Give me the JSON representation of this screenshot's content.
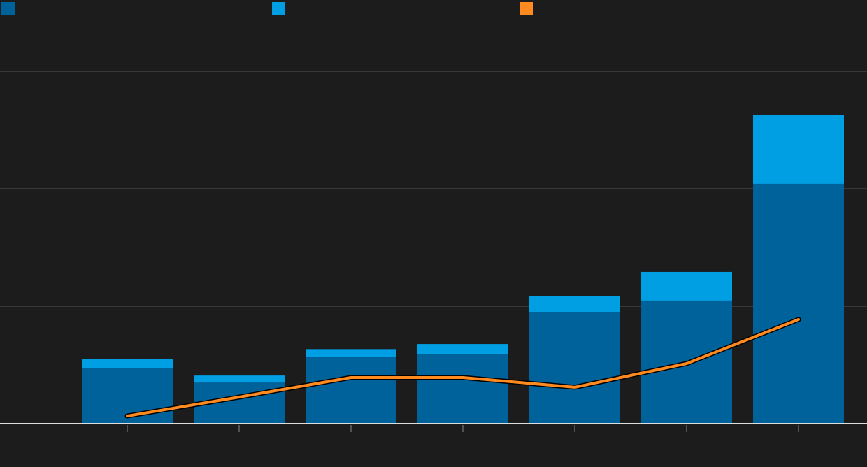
{
  "chart_data": {
    "type": "bar",
    "stacked": true,
    "grid": true,
    "categories": [
      null,
      null,
      null,
      null,
      null,
      null,
      null
    ],
    "ylim": [
      0,
      3
    ],
    "yticks": [
      0,
      1,
      2,
      3
    ],
    "series": [
      {
        "color": "#00629b",
        "values": [
          0.47,
          0.35,
          0.565,
          0.595,
          0.952,
          1.048,
          2.042
        ]
      },
      {
        "color": "#009ee3",
        "values": [
          0.083,
          0.06,
          0.07,
          0.083,
          0.137,
          0.244,
          0.583
        ]
      },
      {
        "type": "line",
        "color": "#ff8a20",
        "values": [
          0.065,
          0.226,
          0.393,
          0.393,
          0.31,
          0.512,
          0.887
        ]
      }
    ]
  }
}
